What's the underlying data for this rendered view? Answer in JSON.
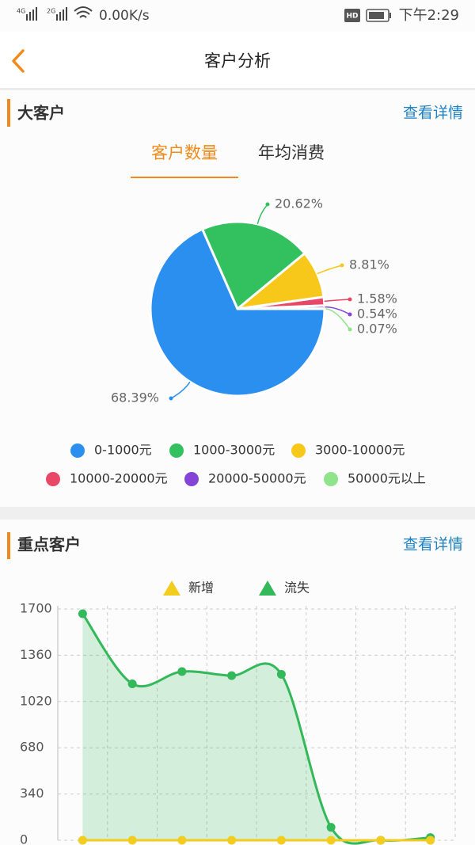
{
  "status_bar": {
    "net1": "4G",
    "net2": "2G",
    "speed": "0.00K/s",
    "hd": "HD",
    "time": "下午2:29"
  },
  "header": {
    "title": "客户分析"
  },
  "sections": [
    {
      "title": "大客户",
      "link": "查看详情",
      "tabs": [
        "客户数量",
        "年均消费"
      ]
    },
    {
      "title": "重点客户",
      "link": "查看详情"
    }
  ],
  "chart_data": [
    {
      "type": "pie",
      "categories": [
        "0-1000元",
        "1000-3000元",
        "3000-10000元",
        "10000-20000元",
        "20000-50000元",
        "50000元以上"
      ],
      "values": [
        68.39,
        20.62,
        8.81,
        1.58,
        0.54,
        0.07
      ],
      "value_labels": [
        "68.39%",
        "20.62%",
        "8.81%",
        "1.58%",
        "0.54%",
        "0.07%"
      ],
      "colors": [
        "#2b8ff0",
        "#33c160",
        "#f7c719",
        "#e84866",
        "#8544d6",
        "#8fe38a"
      ]
    },
    {
      "type": "line",
      "categories": [
        null,
        null,
        null,
        null,
        null,
        null,
        null,
        null
      ],
      "series": [
        {
          "name": "新增",
          "color": "#f2cc1e",
          "values": [
            0,
            0,
            0,
            0,
            0,
            0,
            0,
            0
          ]
        },
        {
          "name": "流失",
          "color": "#33b85a",
          "values": [
            1665,
            1150,
            1240,
            1210,
            1220,
            95,
            0,
            20
          ]
        }
      ],
      "ylim": [
        0,
        1700
      ],
      "yticks": [
        0,
        340,
        680,
        1020,
        1360,
        1700
      ],
      "grid": true
    }
  ]
}
